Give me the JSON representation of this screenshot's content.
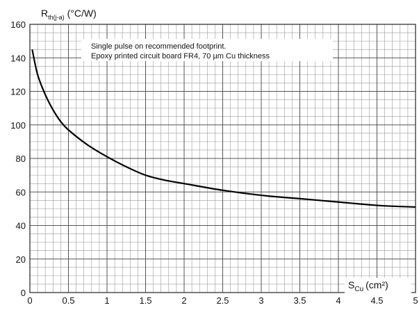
{
  "chart_data": {
    "type": "line",
    "ylabel": {
      "main": "R",
      "sub": "th(j-a)",
      "unit": "(°C/W)"
    },
    "xlabel": {
      "main": "S",
      "sub": "Cu",
      "unit": "(cm²)"
    },
    "xlim": [
      0,
      5
    ],
    "ylim": [
      0,
      160
    ],
    "x_ticks": [
      "0",
      "0.5",
      "1",
      "1.5",
      "2",
      "2.5",
      "3",
      "3.5",
      "4",
      "4.5",
      "5"
    ],
    "y_ticks": [
      "0",
      "20",
      "40",
      "60",
      "80",
      "100",
      "120",
      "140",
      "160"
    ],
    "grid": true,
    "annotations": [
      "Single pulse on recommended footprint.",
      "Epoxy printed circuit board FR4, 70 µm Cu thickness"
    ],
    "series": [
      {
        "x": [
          0.03,
          0.1,
          0.2,
          0.3,
          0.4,
          0.5,
          0.75,
          1.0,
          1.25,
          1.5,
          1.75,
          2.0,
          2.5,
          3.0,
          3.5,
          4.0,
          4.5,
          5.0
        ],
        "y": [
          145,
          130,
          118,
          109,
          102,
          97,
          88,
          81,
          75,
          70,
          67,
          65,
          61,
          58,
          56,
          54,
          52,
          51
        ]
      }
    ]
  }
}
